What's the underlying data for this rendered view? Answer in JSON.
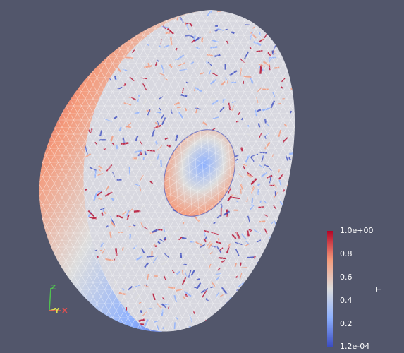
{
  "scene": {
    "background": "#52566b",
    "colormap": [
      "#3b4cc0",
      "#8db0fe",
      "#dddddd",
      "#f49a7b",
      "#b40426"
    ],
    "mesh_wire_color": "#ffffff"
  },
  "colorbar": {
    "title": "T",
    "ticks": [
      {
        "label": "1.0e+00",
        "value": 1.0
      },
      {
        "label": "0.8",
        "value": 0.8
      },
      {
        "label": "0.6",
        "value": 0.6
      },
      {
        "label": "0.4",
        "value": 0.4
      },
      {
        "label": "0.2",
        "value": 0.2
      },
      {
        "label": "1.2e-04",
        "value": 0.00012
      }
    ],
    "range": [
      0.00012,
      1.0
    ]
  },
  "orientation_axes": {
    "x_label": "X",
    "y_label": "Y",
    "z_label": "Z",
    "x_color": "#e05050",
    "y_color": "#e0e050",
    "z_color": "#50c050"
  }
}
